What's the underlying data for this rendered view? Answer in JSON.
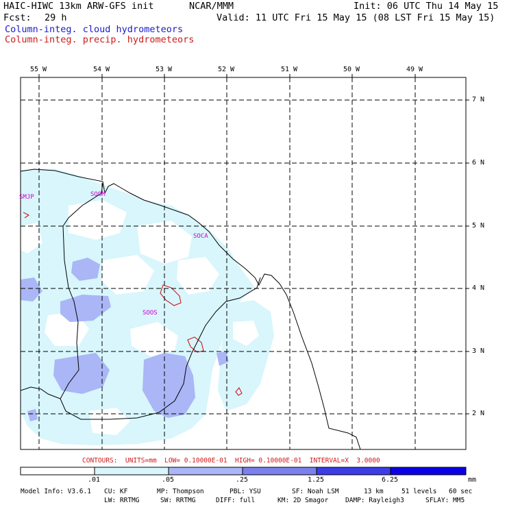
{
  "header": {
    "model": "HAIC-HIWC 13km ARW-GFS init",
    "center": "NCAR/MMM",
    "init": "Init: 06 UTC Thu 14 May 15",
    "fcst_label": "Fcst:",
    "fcst_value": "29 h",
    "valid": "Valid: 11 UTC Fri 15 May 15 (08 LST Fri 15 May 15)",
    "field1": "Column-integ. cloud hydrometeors",
    "field2": "Column-integ. precip. hydrometeors"
  },
  "colors": {
    "field1": "#1a1acc",
    "field2": "#cc1a1a",
    "shade1": "#d8f6fc",
    "shade2": "#aab6f6",
    "shade3": "#7c80ec",
    "shade4": "#3d3ce6",
    "shade5": "#0a00e6",
    "station": "#cc00cc"
  },
  "map": {
    "lon_labels": [
      "55 W",
      "54 W",
      "53 W",
      "52 W",
      "51 W",
      "50 W",
      "49 W"
    ],
    "lat_labels": [
      "7 N",
      "6 N",
      "5 N",
      "4 N",
      "3 N",
      "2 N"
    ],
    "stations": [
      "SMJP",
      "SOOM",
      "SOCA",
      "SOOS"
    ]
  },
  "contours_line": "CONTOURS:  UNITS=mm  LOW= 0.10000E-01  HIGH= 0.10000E-01  INTERVAL=X  3.0000",
  "colorbar": {
    "ticks": [
      ".01",
      ".05",
      ".25",
      "1.25",
      "6.25"
    ],
    "unit": "mm"
  },
  "footer": {
    "line1": [
      "Model Info: V3.6.1",
      "CU: KF",
      "MP: Thompson",
      "PBL: YSU",
      "SF: Noah LSM",
      "13 km",
      "51 levels",
      "60 sec"
    ],
    "line2": [
      "LW: RRTMG",
      "SW: RRTMG",
      "DIFF: full",
      "KM: 2D Smagor",
      "DAMP: Rayleigh3",
      "SFLAY: MM5"
    ]
  }
}
